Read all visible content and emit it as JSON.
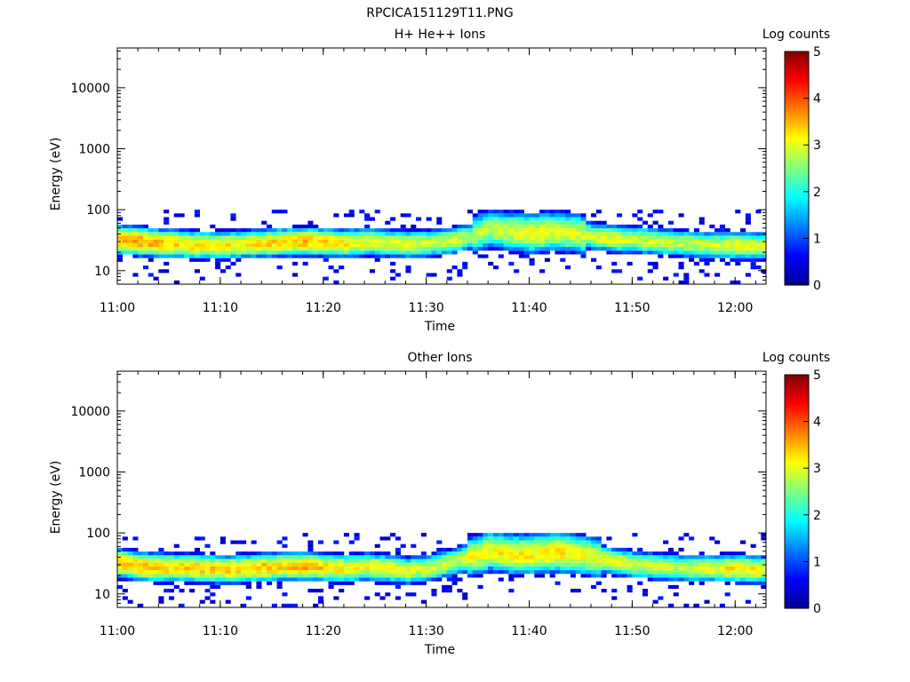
{
  "figure_title": "RPCICA151129T11.PNG",
  "chart_data": [
    {
      "type": "heatmap",
      "title": "H+ He++ Ions",
      "xlabel": "Time",
      "ylabel": "Energy (eV)",
      "x_ticks": [
        "11:00",
        "11:10",
        "11:20",
        "11:30",
        "11:40",
        "11:50",
        "12:00"
      ],
      "x_range": [
        "11:00",
        "12:03"
      ],
      "y_scale": "log",
      "y_ticks": [
        "10",
        "100",
        "1000",
        "10000"
      ],
      "y_range": [
        6,
        45000
      ],
      "colorbar": {
        "label": "Log counts",
        "ticks": [
          "0",
          "1",
          "2",
          "3",
          "4",
          "5"
        ],
        "range": [
          0,
          5
        ]
      },
      "time_minutes": [
        0,
        2,
        4,
        6,
        8,
        10,
        12,
        14,
        16,
        18,
        20,
        22,
        24,
        26,
        28,
        30,
        32,
        34,
        36,
        38,
        40,
        42,
        44,
        46,
        48,
        50,
        52,
        54,
        56,
        58,
        60,
        62
      ],
      "peak_energy_eV": [
        32,
        30,
        28,
        27,
        26,
        26,
        27,
        28,
        29,
        30,
        29,
        28,
        30,
        28,
        27,
        28,
        30,
        36,
        48,
        44,
        40,
        44,
        42,
        36,
        33,
        32,
        30,
        28,
        27,
        26,
        26,
        25
      ],
      "peak_log_counts": [
        3.5,
        3.6,
        3.4,
        3.3,
        3.3,
        3.2,
        3.2,
        3.3,
        3.4,
        3.4,
        3.3,
        3.2,
        3.1,
        3.0,
        3.0,
        2.9,
        2.9,
        2.7,
        2.8,
        2.9,
        3.1,
        3.0,
        3.0,
        2.9,
        3.0,
        2.9,
        2.9,
        2.8,
        2.8,
        2.9,
        3.1,
        3.0
      ]
    },
    {
      "type": "heatmap",
      "title": "Other Ions",
      "xlabel": "Time",
      "ylabel": "Energy (eV)",
      "x_ticks": [
        "11:00",
        "11:10",
        "11:20",
        "11:30",
        "11:40",
        "11:50",
        "12:00"
      ],
      "x_range": [
        "11:00",
        "12:03"
      ],
      "y_scale": "log",
      "y_ticks": [
        "10",
        "100",
        "1000",
        "10000"
      ],
      "y_range": [
        6,
        45000
      ],
      "colorbar": {
        "label": "Log counts",
        "ticks": [
          "0",
          "1",
          "2",
          "3",
          "4",
          "5"
        ],
        "range": [
          0,
          5
        ]
      },
      "time_minutes": [
        0,
        2,
        4,
        6,
        8,
        10,
        12,
        14,
        16,
        18,
        20,
        22,
        24,
        26,
        28,
        30,
        32,
        34,
        36,
        38,
        40,
        42,
        44,
        46,
        48,
        50,
        52,
        54,
        56,
        58,
        60,
        62
      ],
      "peak_energy_eV": [
        32,
        28,
        27,
        27,
        26,
        25,
        26,
        27,
        28,
        28,
        27,
        26,
        28,
        26,
        24,
        26,
        32,
        40,
        50,
        45,
        44,
        48,
        46,
        40,
        34,
        30,
        28,
        27,
        26,
        26,
        26,
        25
      ],
      "peak_log_counts": [
        3.5,
        3.5,
        3.4,
        3.3,
        3.4,
        3.3,
        3.3,
        3.4,
        3.4,
        3.5,
        3.3,
        3.2,
        3.1,
        3.1,
        3.0,
        2.9,
        2.9,
        3.0,
        3.1,
        3.2,
        3.2,
        3.3,
        3.1,
        3.0,
        3.0,
        2.9,
        2.9,
        2.8,
        2.9,
        3.0,
        3.3,
        3.1
      ]
    }
  ]
}
